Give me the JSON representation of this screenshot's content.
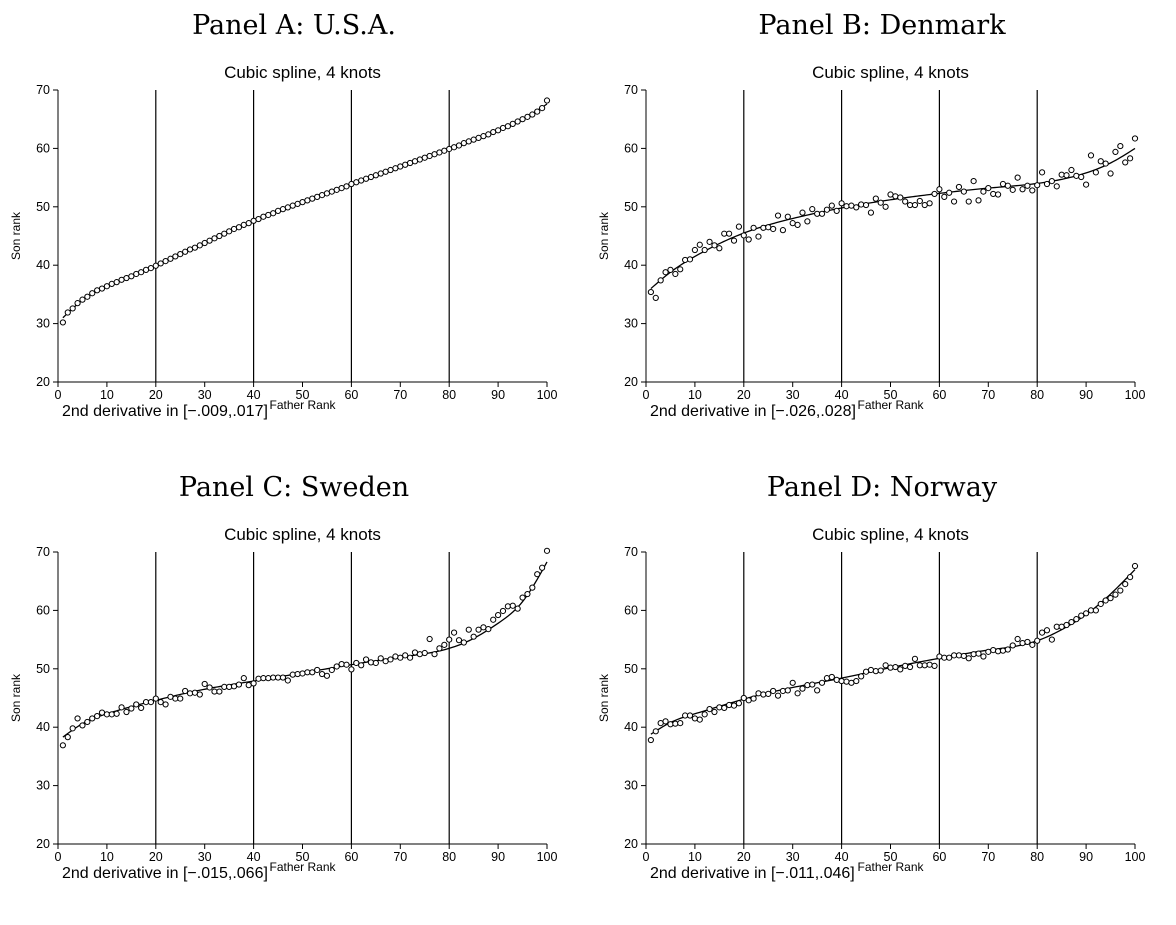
{
  "chart_data": [
    {
      "type": "scatter",
      "panel_title": "Panel A: U.S.A.",
      "title": "Cubic spline, 4 knots",
      "xlabel": "Father Rank",
      "ylabel": "Son rank",
      "xlim": [
        0,
        100
      ],
      "ylim": [
        20,
        70
      ],
      "xticks": [
        0,
        10,
        20,
        30,
        40,
        50,
        60,
        70,
        80,
        90,
        100
      ],
      "yticks": [
        20,
        30,
        40,
        50,
        60,
        70
      ],
      "knots": [
        20,
        40,
        60,
        80
      ],
      "note": "2nd derivative in [−.009,.017]",
      "fit": {
        "x": [
          1,
          5,
          10,
          20,
          30,
          40,
          50,
          60,
          70,
          80,
          90,
          95,
          100
        ],
        "y": [
          31.0,
          34.0,
          36.3,
          40.0,
          43.8,
          47.6,
          50.8,
          53.9,
          56.9,
          59.9,
          63.1,
          65.0,
          67.6
        ]
      },
      "points": {
        "x": [
          1,
          2,
          3,
          4,
          5,
          6,
          7,
          8,
          9,
          10,
          11,
          12,
          13,
          14,
          15,
          16,
          17,
          18,
          19,
          20,
          21,
          22,
          23,
          24,
          25,
          26,
          27,
          28,
          29,
          30,
          31,
          32,
          33,
          34,
          35,
          36,
          37,
          38,
          39,
          40,
          41,
          42,
          43,
          44,
          45,
          46,
          47,
          48,
          49,
          50,
          51,
          52,
          53,
          54,
          55,
          56,
          57,
          58,
          59,
          60,
          61,
          62,
          63,
          64,
          65,
          66,
          67,
          68,
          69,
          70,
          71,
          72,
          73,
          74,
          75,
          76,
          77,
          78,
          79,
          80,
          81,
          82,
          83,
          84,
          85,
          86,
          87,
          88,
          89,
          90,
          91,
          92,
          93,
          94,
          95,
          96,
          97,
          98,
          99,
          100
        ],
        "y": [
          30.2,
          31.9,
          32.6,
          33.5,
          34.1,
          34.6,
          35.2,
          35.7,
          36.0,
          36.4,
          36.8,
          37.1,
          37.5,
          37.8,
          38.1,
          38.5,
          38.8,
          39.2,
          39.5,
          39.9,
          40.3,
          40.7,
          41.1,
          41.5,
          41.9,
          42.3,
          42.7,
          43.0,
          43.4,
          43.8,
          44.2,
          44.6,
          45.0,
          45.4,
          45.8,
          46.2,
          46.5,
          46.9,
          47.2,
          47.6,
          47.9,
          48.3,
          48.6,
          48.9,
          49.3,
          49.6,
          49.9,
          50.2,
          50.5,
          50.8,
          51.1,
          51.4,
          51.7,
          52.0,
          52.3,
          52.6,
          52.9,
          53.2,
          53.5,
          53.9,
          54.2,
          54.5,
          54.8,
          55.1,
          55.4,
          55.7,
          56.0,
          56.3,
          56.6,
          56.9,
          57.2,
          57.5,
          57.8,
          58.1,
          58.4,
          58.7,
          59.0,
          59.3,
          59.6,
          59.9,
          60.2,
          60.5,
          60.9,
          61.2,
          61.5,
          61.8,
          62.1,
          62.4,
          62.8,
          63.1,
          63.5,
          63.8,
          64.2,
          64.6,
          65.0,
          65.4,
          65.8,
          66.3,
          66.9,
          68.2
        ]
      }
    },
    {
      "type": "scatter",
      "panel_title": "Panel B: Denmark",
      "title": "Cubic spline, 4 knots",
      "xlabel": "Father Rank",
      "ylabel": "Son rank",
      "xlim": [
        0,
        100
      ],
      "ylim": [
        20,
        70
      ],
      "xticks": [
        0,
        10,
        20,
        30,
        40,
        50,
        60,
        70,
        80,
        90,
        100
      ],
      "yticks": [
        20,
        30,
        40,
        50,
        60,
        70
      ],
      "knots": [
        20,
        40,
        60,
        80
      ],
      "note": "2nd derivative in [−.026,.028]",
      "fit": {
        "x": [
          1,
          5,
          10,
          20,
          30,
          40,
          50,
          60,
          70,
          80,
          90,
          95,
          100
        ],
        "y": [
          36.0,
          38.8,
          41.5,
          45.5,
          48.0,
          49.8,
          51.2,
          52.3,
          53.2,
          54.0,
          55.8,
          57.5,
          60.0
        ]
      },
      "points": {
        "x": [
          1,
          2,
          3,
          4,
          5,
          6,
          7,
          8,
          9,
          10,
          11,
          12,
          13,
          14,
          15,
          16,
          17,
          18,
          19,
          20,
          21,
          22,
          23,
          24,
          25,
          26,
          27,
          28,
          29,
          30,
          31,
          32,
          33,
          34,
          35,
          36,
          37,
          38,
          39,
          40,
          41,
          42,
          43,
          44,
          45,
          46,
          47,
          48,
          49,
          50,
          51,
          52,
          53,
          54,
          55,
          56,
          57,
          58,
          59,
          60,
          61,
          62,
          63,
          64,
          65,
          66,
          67,
          68,
          69,
          70,
          71,
          72,
          73,
          74,
          75,
          76,
          77,
          78,
          79,
          80,
          81,
          82,
          83,
          84,
          85,
          86,
          87,
          88,
          89,
          90,
          91,
          92,
          93,
          94,
          95,
          96,
          97,
          98,
          99,
          100
        ],
        "y": [
          35.4,
          34.4,
          37.4,
          38.8,
          39.2,
          38.5,
          39.3,
          40.9,
          41.0,
          42.6,
          43.5,
          42.6,
          44.0,
          43.4,
          42.9,
          45.4,
          45.4,
          44.2,
          46.6,
          45.1,
          44.4,
          46.4,
          44.9,
          46.4,
          46.5,
          46.2,
          48.5,
          46.0,
          48.3,
          47.2,
          46.9,
          49.0,
          47.5,
          49.6,
          48.8,
          48.8,
          49.5,
          50.2,
          49.3,
          50.6,
          50.1,
          50.2,
          49.9,
          50.4,
          50.3,
          49.0,
          51.4,
          50.7,
          50.0,
          52.1,
          51.8,
          51.6,
          50.9,
          50.3,
          50.3,
          51.0,
          50.3,
          50.6,
          52.2,
          53.0,
          51.7,
          52.4,
          50.9,
          53.4,
          52.6,
          50.9,
          54.4,
          51.1,
          52.6,
          53.2,
          52.2,
          52.1,
          53.9,
          53.6,
          52.9,
          55.0,
          53.0,
          53.6,
          52.8,
          53.7,
          55.9,
          53.9,
          54.4,
          53.5,
          55.5,
          55.4,
          56.3,
          55.3,
          55.1,
          53.8,
          58.8,
          55.9,
          57.8,
          57.4,
          55.7,
          59.4,
          60.4,
          57.6,
          58.3,
          61.7
        ]
      }
    },
    {
      "type": "scatter",
      "panel_title": "Panel C: Sweden",
      "title": "Cubic spline, 4 knots",
      "xlabel": "Father Rank",
      "ylabel": "Son rank",
      "xlim": [
        0,
        100
      ],
      "ylim": [
        20,
        70
      ],
      "xticks": [
        0,
        10,
        20,
        30,
        40,
        50,
        60,
        70,
        80,
        90,
        100
      ],
      "yticks": [
        20,
        30,
        40,
        50,
        60,
        70
      ],
      "knots": [
        20,
        40,
        60,
        80
      ],
      "note": "2nd derivative in [−.015,.066]",
      "fit": {
        "x": [
          1,
          5,
          10,
          20,
          30,
          40,
          50,
          60,
          70,
          80,
          85,
          90,
          95,
          100
        ],
        "y": [
          38.3,
          40.6,
          42.3,
          44.6,
          46.5,
          47.9,
          49.3,
          50.7,
          52.0,
          53.5,
          55.2,
          57.8,
          61.5,
          68.3
        ]
      },
      "points": {
        "x": [
          1,
          2,
          3,
          4,
          5,
          6,
          7,
          8,
          9,
          10,
          11,
          12,
          13,
          14,
          15,
          16,
          17,
          18,
          19,
          20,
          21,
          22,
          23,
          24,
          25,
          26,
          27,
          28,
          29,
          30,
          31,
          32,
          33,
          34,
          35,
          36,
          37,
          38,
          39,
          40,
          41,
          42,
          43,
          44,
          45,
          46,
          47,
          48,
          49,
          50,
          51,
          52,
          53,
          54,
          55,
          56,
          57,
          58,
          59,
          60,
          61,
          62,
          63,
          64,
          65,
          66,
          67,
          68,
          69,
          70,
          71,
          72,
          73,
          74,
          75,
          76,
          77,
          78,
          79,
          80,
          81,
          82,
          83,
          84,
          85,
          86,
          87,
          88,
          89,
          90,
          91,
          92,
          93,
          94,
          95,
          96,
          97,
          98,
          99,
          100
        ],
        "y": [
          36.9,
          38.3,
          39.8,
          41.5,
          40.3,
          40.9,
          41.5,
          41.9,
          42.5,
          42.2,
          42.2,
          42.3,
          43.4,
          42.6,
          43.2,
          43.9,
          43.3,
          44.3,
          44.3,
          44.9,
          44.3,
          43.9,
          45.2,
          44.9,
          44.9,
          46.2,
          45.8,
          45.9,
          45.6,
          47.4,
          46.8,
          46.1,
          46.1,
          46.9,
          46.9,
          47.0,
          47.3,
          48.4,
          47.2,
          47.5,
          48.3,
          48.4,
          48.4,
          48.5,
          48.5,
          48.5,
          48.0,
          49.0,
          49.1,
          49.2,
          49.4,
          49.4,
          49.8,
          49.1,
          48.8,
          49.8,
          50.4,
          50.8,
          50.7,
          49.9,
          51.0,
          50.6,
          51.6,
          51.1,
          51.0,
          51.8,
          51.3,
          51.6,
          52.1,
          51.9,
          52.3,
          51.9,
          52.8,
          52.5,
          52.7,
          55.1,
          52.5,
          53.5,
          54.1,
          55.0,
          56.2,
          54.9,
          54.5,
          56.7,
          55.5,
          56.7,
          57.1,
          56.8,
          58.4,
          59.2,
          59.9,
          60.7,
          60.8,
          60.3,
          62.2,
          62.8,
          63.9,
          66.2,
          67.3,
          70.2
        ]
      }
    },
    {
      "type": "scatter",
      "panel_title": "Panel D: Norway",
      "title": "Cubic spline, 4 knots",
      "xlabel": "Father Rank",
      "ylabel": "Son rank",
      "xlim": [
        0,
        100
      ],
      "ylim": [
        20,
        70
      ],
      "xticks": [
        0,
        10,
        20,
        30,
        40,
        50,
        60,
        70,
        80,
        90,
        100
      ],
      "yticks": [
        20,
        30,
        40,
        50,
        60,
        70
      ],
      "knots": [
        20,
        40,
        60,
        80
      ],
      "note": "2nd derivative in [−.011,.046]",
      "fit": {
        "x": [
          1,
          5,
          10,
          20,
          30,
          40,
          50,
          60,
          70,
          80,
          85,
          90,
          95,
          100
        ],
        "y": [
          38.8,
          40.8,
          42.3,
          44.8,
          46.8,
          48.4,
          50.2,
          51.8,
          53.2,
          54.8,
          56.7,
          59.3,
          62.8,
          67.0
        ]
      },
      "points": {
        "x": [
          1,
          2,
          3,
          4,
          5,
          6,
          7,
          8,
          9,
          10,
          11,
          12,
          13,
          14,
          15,
          16,
          17,
          18,
          19,
          20,
          21,
          22,
          23,
          24,
          25,
          26,
          27,
          28,
          29,
          30,
          31,
          32,
          33,
          34,
          35,
          36,
          37,
          38,
          39,
          40,
          41,
          42,
          43,
          44,
          45,
          46,
          47,
          48,
          49,
          50,
          51,
          52,
          53,
          54,
          55,
          56,
          57,
          58,
          59,
          60,
          61,
          62,
          63,
          64,
          65,
          66,
          67,
          68,
          69,
          70,
          71,
          72,
          73,
          74,
          75,
          76,
          77,
          78,
          79,
          80,
          81,
          82,
          83,
          84,
          85,
          86,
          87,
          88,
          89,
          90,
          91,
          92,
          93,
          94,
          95,
          96,
          97,
          98,
          99,
          100
        ],
        "y": [
          37.8,
          39.3,
          40.7,
          41.0,
          40.5,
          40.6,
          40.7,
          42.0,
          42.0,
          41.5,
          41.3,
          42.2,
          43.1,
          42.6,
          43.4,
          43.3,
          43.8,
          43.7,
          44.1,
          45.0,
          44.6,
          44.9,
          45.8,
          45.6,
          45.7,
          46.2,
          45.4,
          46.2,
          46.3,
          47.6,
          45.8,
          46.6,
          47.2,
          47.3,
          46.3,
          47.6,
          48.4,
          48.6,
          48.1,
          47.9,
          47.8,
          47.6,
          47.9,
          48.7,
          49.5,
          49.8,
          49.6,
          49.7,
          50.6,
          50.2,
          50.3,
          49.9,
          50.5,
          50.3,
          51.7,
          50.6,
          50.6,
          50.7,
          50.5,
          52.1,
          51.9,
          51.9,
          52.3,
          52.3,
          52.2,
          51.8,
          52.5,
          52.6,
          52.1,
          52.9,
          53.2,
          53.0,
          53.1,
          53.3,
          54.0,
          55.1,
          54.4,
          54.6,
          54.1,
          54.8,
          56.2,
          56.6,
          55.0,
          57.2,
          57.2,
          57.5,
          58.0,
          58.5,
          59.1,
          59.5,
          60.0,
          60.0,
          61.1,
          61.7,
          62.1,
          62.7,
          63.4,
          64.5,
          65.7,
          67.6
        ]
      }
    }
  ]
}
